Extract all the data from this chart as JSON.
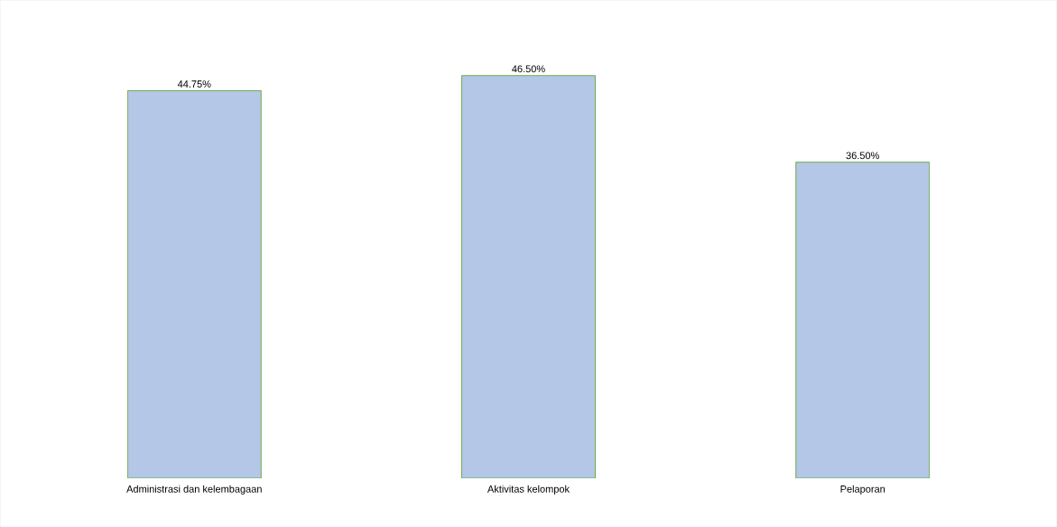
{
  "chart_data": {
    "type": "bar",
    "categories": [
      "Administrasi dan kelembagaan",
      "Aktivitas kelompok",
      "Pelaporan"
    ],
    "values": [
      44.75,
      46.5,
      36.5
    ],
    "value_labels": [
      "44.75%",
      "46.50%",
      "36.50%"
    ],
    "color": "#b4c7e7"
  }
}
